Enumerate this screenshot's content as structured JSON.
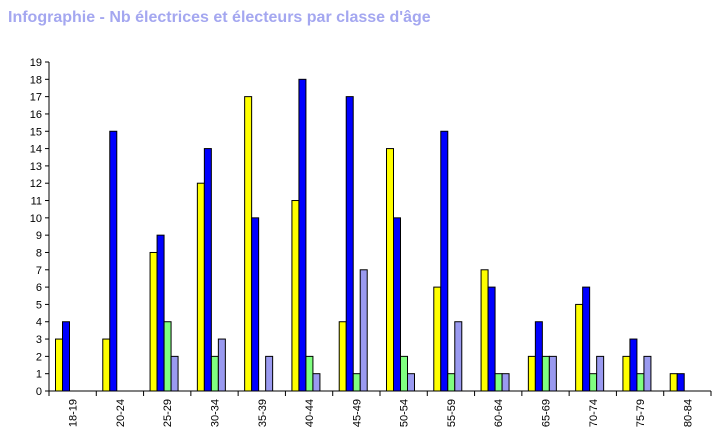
{
  "header": {
    "title": "Infographie - Nb électrices et électeurs par classe d'âge"
  },
  "chart_data": {
    "type": "bar",
    "title": "Infographie - Nb électrices et électeurs par classe d'âge",
    "xlabel": "",
    "ylabel": "",
    "ylim": [
      0,
      19
    ],
    "yticks": [
      "0",
      "1",
      "2",
      "3",
      "4",
      "5",
      "6",
      "7",
      "8",
      "9",
      "10",
      "11",
      "12",
      "13",
      "14",
      "15",
      "16",
      "17",
      "18",
      "19"
    ],
    "grid": false,
    "legend": "none",
    "categories": [
      "18-19",
      "20-24",
      "25-29",
      "30-34",
      "35-39",
      "40-44",
      "45-49",
      "50-54",
      "55-59",
      "60-64",
      "65-69",
      "70-74",
      "75-79",
      "80-84"
    ],
    "series": [
      {
        "color": "#ffff00",
        "values": [
          3,
          3,
          8,
          12,
          17,
          11,
          4,
          14,
          6,
          7,
          2,
          5,
          2,
          1
        ]
      },
      {
        "color": "#0000ff",
        "values": [
          4,
          15,
          9,
          14,
          10,
          18,
          17,
          10,
          15,
          6,
          4,
          6,
          3,
          1
        ]
      },
      {
        "color": "#80ff80",
        "values": [
          0,
          0,
          4,
          2,
          0,
          2,
          1,
          2,
          1,
          1,
          2,
          1,
          1,
          0
        ]
      },
      {
        "color": "#9a9af0",
        "values": [
          0,
          0,
          2,
          3,
          2,
          1,
          7,
          1,
          4,
          1,
          2,
          2,
          2,
          0
        ]
      }
    ]
  }
}
